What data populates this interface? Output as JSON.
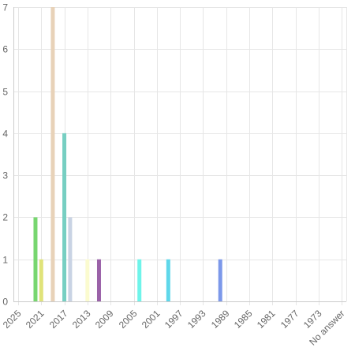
{
  "chart_data": {
    "type": "bar",
    "y_ticks": [
      "0",
      "1",
      "2",
      "3",
      "4",
      "5",
      "6",
      "7"
    ],
    "ylim": [
      0,
      7
    ],
    "x_tick_labels": [
      "2025",
      "2021",
      "2017",
      "2013",
      "2009",
      "2005",
      "2001",
      "1997",
      "1993",
      "1989",
      "1985",
      "1981",
      "1977",
      "1973",
      "No answer"
    ],
    "grid": true,
    "bars": [
      {
        "year": 2022,
        "value": 2,
        "color": "#77d66f"
      },
      {
        "year": 2021,
        "value": 1,
        "color": "#e0e37a"
      },
      {
        "year": 2019,
        "value": 7,
        "color": "#e8d2b8"
      },
      {
        "year": 2017,
        "value": 4,
        "color": "#77cfc2"
      },
      {
        "year": 2016,
        "value": 2,
        "color": "#c9d3e4"
      },
      {
        "year": 2013,
        "value": 1,
        "color": "#fbfbcf"
      },
      {
        "year": 2011,
        "value": 1,
        "color": "#9a62a8"
      },
      {
        "year": 2004,
        "value": 1,
        "color": "#6ff4ea"
      },
      {
        "year": 1999,
        "value": 1,
        "color": "#5fd7ea"
      },
      {
        "year": 1990,
        "value": 1,
        "color": "#7c98ea"
      }
    ]
  }
}
